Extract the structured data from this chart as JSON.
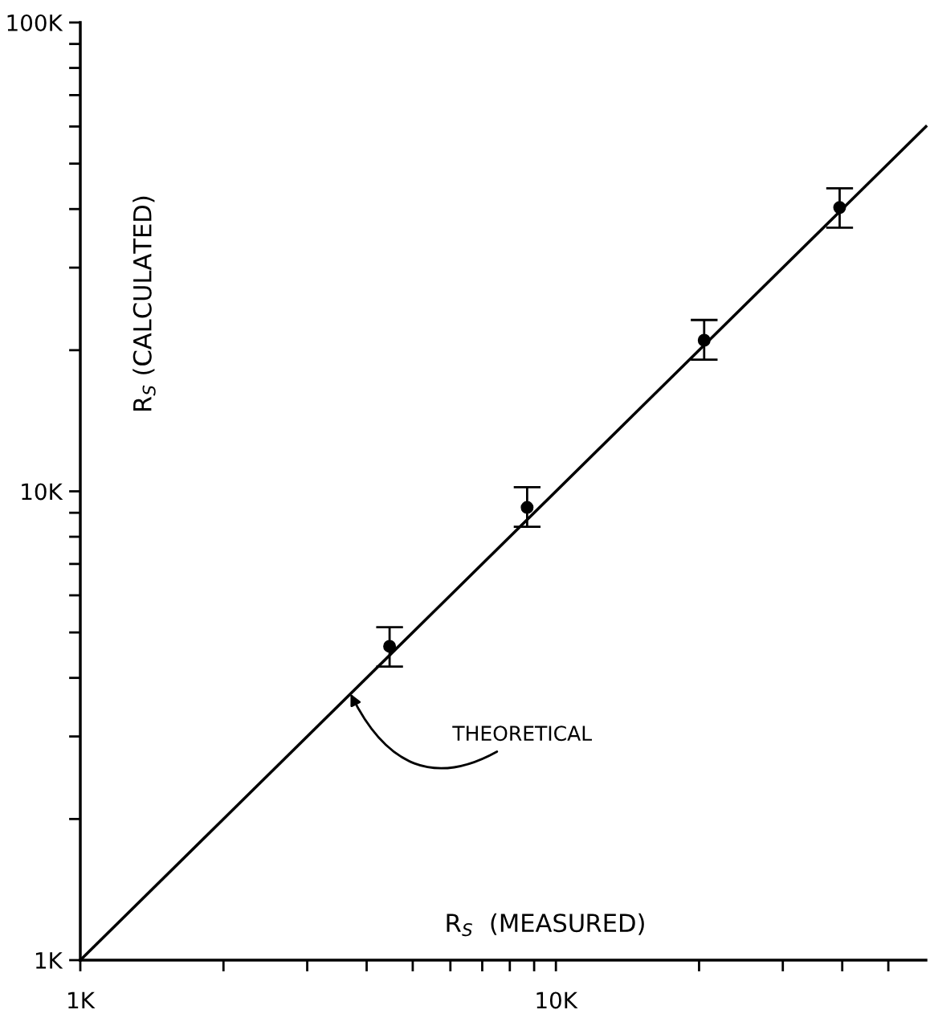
{
  "chart_data": {
    "type": "scatter",
    "xlabel": "R$_{S}$  (MEASURED)",
    "ylabel": "R$_{S}$ (CALCULATED)",
    "log": "xy",
    "grid": false,
    "marker": "circle",
    "xlim": [
      1000,
      60000
    ],
    "ylim": [
      1000,
      100000
    ],
    "xticks": [
      {
        "value": 1000,
        "label": "1K"
      },
      {
        "value": 2000,
        "label": null
      },
      {
        "value": 3000,
        "label": null
      },
      {
        "value": 4000,
        "label": null
      },
      {
        "value": 5000,
        "label": null
      },
      {
        "value": 6000,
        "label": null
      },
      {
        "value": 7000,
        "label": null
      },
      {
        "value": 8000,
        "label": null
      },
      {
        "value": 9000,
        "label": null
      },
      {
        "value": 10000,
        "label": "10K"
      },
      {
        "value": 20000,
        "label": null
      },
      {
        "value": 30000,
        "label": null
      },
      {
        "value": 40000,
        "label": null
      },
      {
        "value": 50000,
        "label": null
      }
    ],
    "yticks": [
      {
        "value": 1000,
        "label": "1K"
      },
      {
        "value": 2000,
        "label": null
      },
      {
        "value": 3000,
        "label": null
      },
      {
        "value": 4000,
        "label": null
      },
      {
        "value": 5000,
        "label": null
      },
      {
        "value": 6000,
        "label": null
      },
      {
        "value": 7000,
        "label": null
      },
      {
        "value": 8000,
        "label": null
      },
      {
        "value": 9000,
        "label": null
      },
      {
        "value": 10000,
        "label": "10K"
      },
      {
        "value": 20000,
        "label": null
      },
      {
        "value": 30000,
        "label": null
      },
      {
        "value": 40000,
        "label": null
      },
      {
        "value": 50000,
        "label": null
      },
      {
        "value": 60000,
        "label": null
      },
      {
        "value": 70000,
        "label": null
      },
      {
        "value": 80000,
        "label": null
      },
      {
        "value": 90000,
        "label": null
      },
      {
        "value": 100000,
        "label": "100K"
      }
    ],
    "series": [
      {
        "type": "line",
        "color": "#000000",
        "marker": "none",
        "line_style": "solid",
        "x": [
          1000,
          60000
        ],
        "values": [
          1000,
          60000
        ]
      },
      {
        "color": "#000000",
        "x": [
          4470,
          8700,
          20500,
          39500
        ],
        "values": [
          4670,
          9240,
          21000,
          40300
        ],
        "errors": [
          [
            4230,
            5130
          ],
          [
            8400,
            10200
          ],
          [
            19100,
            23200
          ],
          [
            36500,
            44300
          ]
        ]
      }
    ],
    "annotations": [
      {
        "text": "THEORETICAL",
        "x": 3700,
        "y": 3700
      }
    ]
  }
}
